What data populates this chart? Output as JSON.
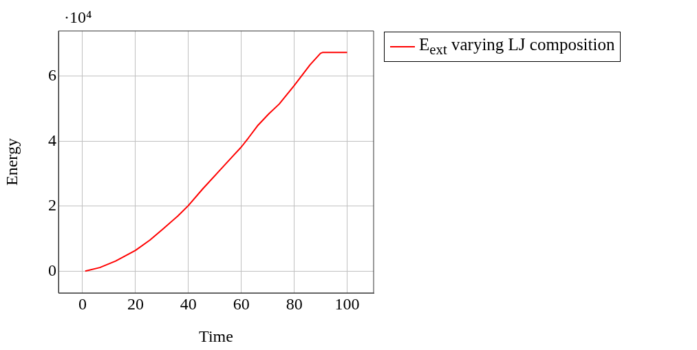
{
  "chart_data": {
    "type": "line",
    "xlabel": "Time",
    "ylabel": "Energy",
    "annotations": [
      "·10⁴"
    ],
    "x": [
      1,
      6.5,
      12.5,
      20,
      25.5,
      30.7,
      35.9,
      40,
      45.4,
      51.4,
      56.6,
      60,
      62.7,
      66.1,
      70.4,
      74.3,
      80,
      86,
      89.9,
      90.8,
      100
    ],
    "series": [
      {
        "name": "E$_{ext}$ varying LJ composition",
        "color": "#ff0000",
        "values": [
          0,
          0.11,
          0.31,
          0.64,
          0.96,
          1.32,
          1.69,
          2.02,
          2.53,
          3.06,
          3.52,
          3.82,
          4.1,
          4.47,
          4.84,
          5.14,
          5.71,
          6.35,
          6.7,
          6.73,
          6.73
        ]
      }
    ],
    "xlim": [
      -9.1,
      110
    ],
    "ylim": [
      -0.67,
      7.39
    ],
    "xticks": [
      0,
      20,
      40,
      60,
      80,
      100
    ],
    "yticks": [
      0,
      2,
      4,
      6
    ],
    "grid": true,
    "legend": "top right",
    "marker": "none",
    "line_style": "solid"
  }
}
